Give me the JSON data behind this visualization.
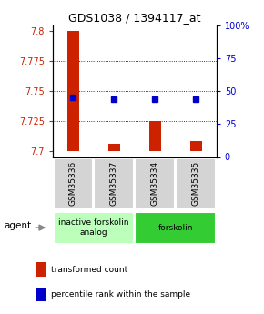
{
  "title": "GDS1038 / 1394117_at",
  "samples": [
    "GSM35336",
    "GSM35337",
    "GSM35334",
    "GSM35335"
  ],
  "bar_values": [
    7.8,
    7.706,
    7.725,
    7.708
  ],
  "dot_values": [
    7.745,
    7.743,
    7.743,
    7.743
  ],
  "bar_color": "#cc2200",
  "dot_color": "#0000cc",
  "ylim_left": [
    7.695,
    7.805
  ],
  "ylim_right": [
    0,
    100
  ],
  "yticks_left": [
    7.7,
    7.725,
    7.75,
    7.775,
    7.8
  ],
  "ytick_labels_left": [
    "7.7",
    "7.725",
    "7.75",
    "7.775",
    "7.8"
  ],
  "yticks_right": [
    0,
    25,
    50,
    75,
    100
  ],
  "ytick_labels_right": [
    "0",
    "25",
    "50",
    "75",
    "100%"
  ],
  "groups": [
    {
      "label": "inactive forskolin\nanalog",
      "color": "#bbffbb"
    },
    {
      "label": "forskolin",
      "color": "#33cc33"
    }
  ],
  "bar_bottom": 7.7,
  "legend_items": [
    {
      "color": "#cc2200",
      "label": "transformed count"
    },
    {
      "color": "#0000cc",
      "label": "percentile rank within the sample"
    }
  ],
  "fig_width": 2.9,
  "fig_height": 3.45
}
